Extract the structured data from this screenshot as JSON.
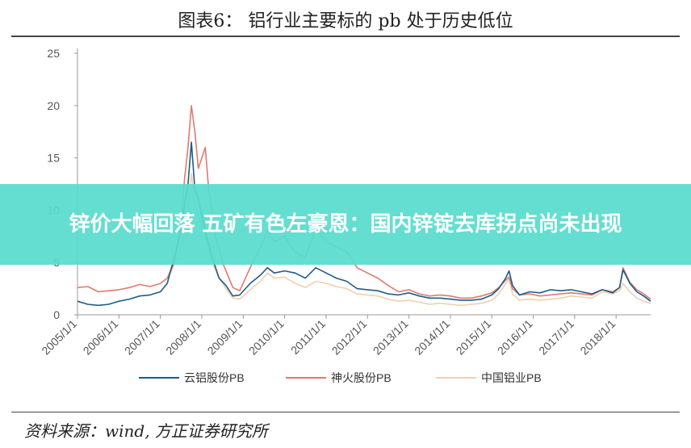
{
  "header": {
    "title": "图表6：   铝行业主要标的 pb 处于历史低位"
  },
  "banner": {
    "text": "锌价大幅回落 五矿有色左豪恩：国内锌锭去库拐点尚未出现"
  },
  "footer": {
    "source": "资料来源：wind, 方正证券研究所"
  },
  "chart_data": {
    "type": "line",
    "ylim": [
      0,
      25
    ],
    "yticks": [
      "0",
      "5",
      "10",
      "15",
      "20",
      "25"
    ],
    "x_ticks": [
      "2005/1/1",
      "2006/1/1",
      "2007/1/1",
      "2008/1/1",
      "2009/1/1",
      "2010/1/1",
      "2011/1/1",
      "2012/1/1",
      "2013/1/1",
      "2014/1/1",
      "2015/1/1",
      "2016/1/1",
      "2017/1/1",
      "2018/1/1"
    ],
    "x_range": [
      "2005/1/1",
      "2018/11/1"
    ],
    "series": [
      {
        "name": "云铝股份PB",
        "color": "#1f5c8a",
        "points": [
          [
            "2005/1/1",
            1.3
          ],
          [
            "2005/4/1",
            1.0
          ],
          [
            "2005/7/1",
            0.9
          ],
          [
            "2005/10/1",
            1.0
          ],
          [
            "2006/1/1",
            1.3
          ],
          [
            "2006/4/1",
            1.5
          ],
          [
            "2006/7/1",
            1.8
          ],
          [
            "2006/10/1",
            1.9
          ],
          [
            "2007/1/1",
            2.2
          ],
          [
            "2007/3/1",
            3.0
          ],
          [
            "2007/5/1",
            5.5
          ],
          [
            "2007/7/1",
            8.0
          ],
          [
            "2007/8/1",
            10.5
          ],
          [
            "2007/9/1",
            12.5
          ],
          [
            "2007/10/1",
            16.5
          ],
          [
            "2007/11/1",
            12.0
          ],
          [
            "2007/12/1",
            11.0
          ],
          [
            "2008/2/1",
            8.0
          ],
          [
            "2008/4/1",
            5.5
          ],
          [
            "2008/6/1",
            3.5
          ],
          [
            "2008/8/1",
            2.8
          ],
          [
            "2008/10/1",
            1.8
          ],
          [
            "2008/12/1",
            1.9
          ],
          [
            "2009/3/1",
            3.0
          ],
          [
            "2009/6/1",
            3.8
          ],
          [
            "2009/8/1",
            4.5
          ],
          [
            "2009/10/1",
            4.0
          ],
          [
            "2010/1/1",
            4.2
          ],
          [
            "2010/4/1",
            4.0
          ],
          [
            "2010/7/1",
            3.5
          ],
          [
            "2010/10/1",
            4.5
          ],
          [
            "2011/1/1",
            4.0
          ],
          [
            "2011/4/1",
            3.5
          ],
          [
            "2011/7/1",
            3.2
          ],
          [
            "2011/10/1",
            2.5
          ],
          [
            "2012/1/1",
            2.4
          ],
          [
            "2012/4/1",
            2.3
          ],
          [
            "2012/7/1",
            2.0
          ],
          [
            "2012/10/1",
            1.9
          ],
          [
            "2013/1/1",
            2.1
          ],
          [
            "2013/4/1",
            1.8
          ],
          [
            "2013/7/1",
            1.6
          ],
          [
            "2013/10/1",
            1.6
          ],
          [
            "2014/1/1",
            1.5
          ],
          [
            "2014/4/1",
            1.4
          ],
          [
            "2014/7/1",
            1.4
          ],
          [
            "2014/10/1",
            1.5
          ],
          [
            "2015/1/1",
            1.9
          ],
          [
            "2015/3/1",
            2.5
          ],
          [
            "2015/5/1",
            3.5
          ],
          [
            "2015/6/1",
            4.2
          ],
          [
            "2015/7/1",
            2.8
          ],
          [
            "2015/9/1",
            1.9
          ],
          [
            "2015/12/1",
            2.2
          ],
          [
            "2016/3/1",
            2.1
          ],
          [
            "2016/6/1",
            2.4
          ],
          [
            "2016/9/1",
            2.3
          ],
          [
            "2016/12/1",
            2.4
          ],
          [
            "2017/3/1",
            2.2
          ],
          [
            "2017/6/1",
            2.0
          ],
          [
            "2017/9/1",
            2.4
          ],
          [
            "2017/12/1",
            2.1
          ],
          [
            "2018/2/1",
            2.6
          ],
          [
            "2018/3/1",
            4.3
          ],
          [
            "2018/5/1",
            3.0
          ],
          [
            "2018/7/1",
            2.2
          ],
          [
            "2018/9/1",
            1.8
          ],
          [
            "2018/11/1",
            1.3
          ]
        ]
      },
      {
        "name": "神火股份PB",
        "color": "#e07a6e",
        "points": [
          [
            "2005/1/1",
            2.6
          ],
          [
            "2005/4/1",
            2.7
          ],
          [
            "2005/7/1",
            2.2
          ],
          [
            "2005/10/1",
            2.3
          ],
          [
            "2006/1/1",
            2.4
          ],
          [
            "2006/4/1",
            2.6
          ],
          [
            "2006/7/1",
            2.9
          ],
          [
            "2006/10/1",
            2.7
          ],
          [
            "2007/1/1",
            3.0
          ],
          [
            "2007/3/1",
            3.5
          ],
          [
            "2007/5/1",
            5.0
          ],
          [
            "2007/7/1",
            8.5
          ],
          [
            "2007/8/1",
            13.0
          ],
          [
            "2007/9/1",
            16.0
          ],
          [
            "2007/10/1",
            20.0
          ],
          [
            "2007/11/1",
            17.5
          ],
          [
            "2007/12/1",
            14.0
          ],
          [
            "2008/2/1",
            16.0
          ],
          [
            "2008/3/1",
            12.0
          ],
          [
            "2008/5/1",
            7.5
          ],
          [
            "2008/7/1",
            5.0
          ],
          [
            "2008/10/1",
            2.6
          ],
          [
            "2008/12/1",
            2.3
          ],
          [
            "2009/3/1",
            4.5
          ],
          [
            "2009/6/1",
            6.5
          ],
          [
            "2009/8/1",
            8.0
          ],
          [
            "2009/10/1",
            7.0
          ],
          [
            "2010/1/1",
            7.5
          ],
          [
            "2010/4/1",
            6.0
          ],
          [
            "2010/7/1",
            5.5
          ],
          [
            "2010/10/1",
            8.2
          ],
          [
            "2011/1/1",
            7.0
          ],
          [
            "2011/4/1",
            6.5
          ],
          [
            "2011/7/1",
            6.0
          ],
          [
            "2011/10/1",
            4.5
          ],
          [
            "2012/1/1",
            4.0
          ],
          [
            "2012/4/1",
            3.5
          ],
          [
            "2012/7/1",
            2.8
          ],
          [
            "2012/10/1",
            2.2
          ],
          [
            "2013/1/1",
            2.4
          ],
          [
            "2013/4/1",
            2.0
          ],
          [
            "2013/7/1",
            1.8
          ],
          [
            "2013/10/1",
            1.9
          ],
          [
            "2014/1/1",
            1.8
          ],
          [
            "2014/4/1",
            1.6
          ],
          [
            "2014/7/1",
            1.6
          ],
          [
            "2014/10/1",
            1.8
          ],
          [
            "2015/1/1",
            2.1
          ],
          [
            "2015/3/1",
            2.6
          ],
          [
            "2015/5/1",
            3.3
          ],
          [
            "2015/6/1",
            3.6
          ],
          [
            "2015/7/1",
            2.5
          ],
          [
            "2015/9/1",
            1.9
          ],
          [
            "2015/12/1",
            2.0
          ],
          [
            "2016/3/1",
            1.8
          ],
          [
            "2016/6/1",
            1.9
          ],
          [
            "2016/9/1",
            2.0
          ],
          [
            "2016/12/1",
            2.1
          ],
          [
            "2017/3/1",
            2.0
          ],
          [
            "2017/6/1",
            1.9
          ],
          [
            "2017/9/1",
            2.4
          ],
          [
            "2017/12/1",
            2.2
          ],
          [
            "2018/2/1",
            2.6
          ],
          [
            "2018/3/1",
            4.5
          ],
          [
            "2018/5/1",
            3.1
          ],
          [
            "2018/7/1",
            2.4
          ],
          [
            "2018/9/1",
            2.0
          ],
          [
            "2018/11/1",
            1.5
          ]
        ]
      },
      {
        "name": "中国铝业PB",
        "color": "#f2cfae",
        "points": [
          [
            "2007/4/1",
            4.0
          ],
          [
            "2007/6/1",
            5.5
          ],
          [
            "2007/8/1",
            8.0
          ],
          [
            "2007/9/1",
            10.0
          ],
          [
            "2007/10/1",
            13.5
          ],
          [
            "2007/11/1",
            10.5
          ],
          [
            "2007/12/1",
            9.5
          ],
          [
            "2008/2/1",
            7.5
          ],
          [
            "2008/4/1",
            5.0
          ],
          [
            "2008/6/1",
            3.5
          ],
          [
            "2008/8/1",
            2.5
          ],
          [
            "2008/10/1",
            1.6
          ],
          [
            "2008/12/1",
            1.5
          ],
          [
            "2009/3/1",
            2.4
          ],
          [
            "2009/6/1",
            3.2
          ],
          [
            "2009/8/1",
            4.0
          ],
          [
            "2009/10/1",
            3.5
          ],
          [
            "2010/1/1",
            3.6
          ],
          [
            "2010/4/1",
            3.0
          ],
          [
            "2010/7/1",
            2.6
          ],
          [
            "2010/10/1",
            3.2
          ],
          [
            "2011/1/1",
            3.0
          ],
          [
            "2011/4/1",
            2.7
          ],
          [
            "2011/7/1",
            2.5
          ],
          [
            "2011/10/1",
            2.0
          ],
          [
            "2012/1/1",
            1.9
          ],
          [
            "2012/4/1",
            1.8
          ],
          [
            "2012/7/1",
            1.5
          ],
          [
            "2012/10/1",
            1.3
          ],
          [
            "2013/1/1",
            1.4
          ],
          [
            "2013/4/1",
            1.2
          ],
          [
            "2013/7/1",
            1.0
          ],
          [
            "2013/10/1",
            1.1
          ],
          [
            "2014/1/1",
            1.0
          ],
          [
            "2014/4/1",
            0.9
          ],
          [
            "2014/7/1",
            1.0
          ],
          [
            "2014/10/1",
            1.1
          ],
          [
            "2015/1/1",
            1.4
          ],
          [
            "2015/3/1",
            2.0
          ],
          [
            "2015/5/1",
            3.0
          ],
          [
            "2015/6/1",
            3.4
          ],
          [
            "2015/7/1",
            2.0
          ],
          [
            "2015/9/1",
            1.4
          ],
          [
            "2015/12/1",
            1.5
          ],
          [
            "2016/3/1",
            1.4
          ],
          [
            "2016/6/1",
            1.5
          ],
          [
            "2016/9/1",
            1.6
          ],
          [
            "2016/12/1",
            1.8
          ],
          [
            "2017/3/1",
            1.7
          ],
          [
            "2017/6/1",
            1.6
          ],
          [
            "2017/9/1",
            2.2
          ],
          [
            "2017/12/1",
            2.0
          ],
          [
            "2018/2/1",
            2.3
          ],
          [
            "2018/3/1",
            3.0
          ],
          [
            "2018/5/1",
            2.2
          ],
          [
            "2018/7/1",
            1.6
          ],
          [
            "2018/9/1",
            1.3
          ],
          [
            "2018/11/1",
            1.1
          ]
        ]
      }
    ]
  }
}
